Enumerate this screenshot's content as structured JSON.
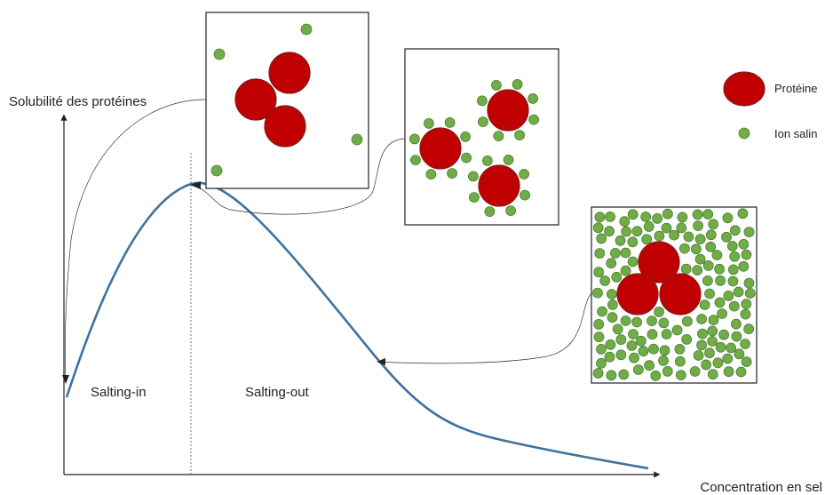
{
  "axes": {
    "y_label": "Solubilité des protéines",
    "x_label": "Concentration en sel"
  },
  "regions": {
    "salting_in": "Salting-in",
    "salting_out": "Salting-out"
  },
  "legend": {
    "protein": "Protéine",
    "ion": "Ion salin"
  },
  "colors": {
    "protein": "#c00000",
    "protein_stroke": "#8b1a1a",
    "ion": "#70ad47",
    "ion_stroke": "#4e7d33",
    "curve": "#41719c"
  }
}
